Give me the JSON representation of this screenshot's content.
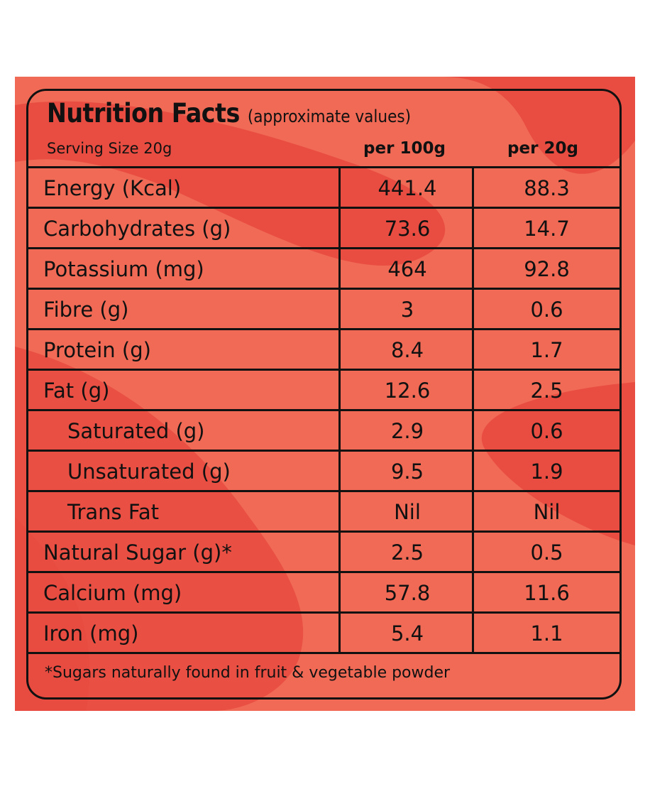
{
  "header": {
    "title": "Nutrition Facts",
    "subtitle": "(approximate values)",
    "serving": "Serving Size  20g",
    "col1": "per 100g",
    "col2": "per 20g"
  },
  "rows": [
    {
      "name": "Energy (Kcal)",
      "per100": "441.4",
      "per20": "88.3",
      "indent": false
    },
    {
      "name": "Carbohydrates (g)",
      "per100": "73.6",
      "per20": "14.7",
      "indent": false
    },
    {
      "name": "Potassium (mg)",
      "per100": "464",
      "per20": "92.8",
      "indent": false
    },
    {
      "name": "Fibre (g)",
      "per100": "3",
      "per20": "0.6",
      "indent": false
    },
    {
      "name": "Protein (g)",
      "per100": "8.4",
      "per20": "1.7",
      "indent": false
    },
    {
      "name": "Fat (g)",
      "per100": "12.6",
      "per20": "2.5",
      "indent": false
    },
    {
      "name": "Saturated (g)",
      "per100": "2.9",
      "per20": "0.6",
      "indent": true
    },
    {
      "name": "Unsaturated (g)",
      "per100": "9.5",
      "per20": "1.9",
      "indent": true
    },
    {
      "name": "Trans Fat",
      "per100": "Nil",
      "per20": "Nil",
      "indent": true
    },
    {
      "name": "Natural Sugar (g)*",
      "per100": "2.5",
      "per20": "0.5",
      "indent": false
    },
    {
      "name": "Calcium (mg)",
      "per100": "57.8",
      "per20": "11.6",
      "indent": false
    },
    {
      "name": "Iron (mg)",
      "per100": "5.4",
      "per20": "1.1",
      "indent": false
    }
  ],
  "footnote": "*Sugars naturally found in fruit & vegetable powder",
  "colors": {
    "background": "#f06a56",
    "accent": "#e84a3f",
    "ink": "#111111"
  }
}
